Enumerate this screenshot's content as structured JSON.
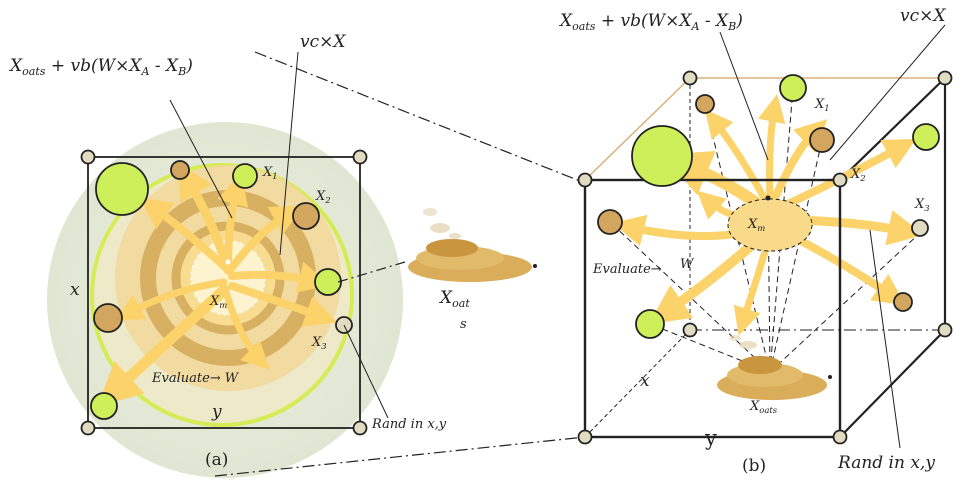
{
  "colors": {
    "green": "#ccef5a",
    "brown": "#d3a660",
    "beige": "#e1dcc1",
    "arrow": "#fbd36a",
    "halo_outer": "#dfe6d2",
    "halo_mid": "#f2d89a",
    "ring_dark": "#d8b061",
    "bright_ring": "#d5ec55"
  },
  "icons": [
    "oat-pile-icon"
  ],
  "panel_a": {
    "formula_main": "X",
    "formula_sub": "oats",
    "formula_rest": " + vb(W×X",
    "formula_sub_a": "A",
    "formula_dash": " - X",
    "formula_sub_b": "B",
    "formula_close": ")",
    "velocity": "vc×X",
    "x1_main": "X",
    "x1_sub": "1",
    "x2_main": "X",
    "x2_sub": "2",
    "x3_main": "X",
    "x3_sub": "3",
    "xm_main": "X",
    "xm_sub": "m",
    "axis_x": "x",
    "axis_y": "y",
    "evaluate": "Evaluate→  W",
    "rand": "Rand in x,y",
    "caption": "(a)"
  },
  "oat_label": {
    "main": "X",
    "sub": "oat",
    "wrap": "s"
  },
  "panel_b": {
    "formula_main": "X",
    "formula_sub": "oats",
    "formula_rest": " + vb(W×X",
    "formula_sub_a": "A",
    "formula_dash": " - X",
    "formula_sub_b": "B",
    "formula_close": ")",
    "velocity": "vc×X",
    "x1_main": "X",
    "x1_sub": "1",
    "x2_main": "X",
    "x2_sub": "2",
    "x3_main": "X",
    "x3_sub": "3",
    "xm_main": "X",
    "xm_sub": "m",
    "axis_x": "x",
    "axis_y": "y",
    "w_label": "W",
    "evaluate": "Evaluate→",
    "oats_main": "X",
    "oats_sub": "oats",
    "rand": "Rand in x,y",
    "caption": "(b)"
  }
}
